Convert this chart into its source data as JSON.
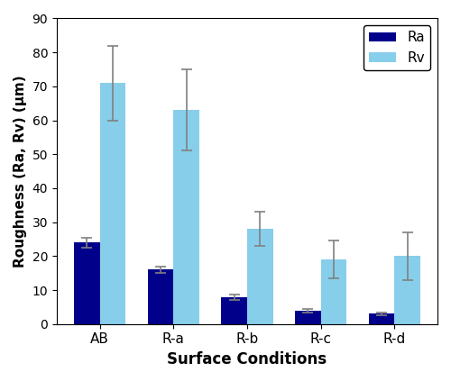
{
  "categories": [
    "AB",
    "R-a",
    "R-b",
    "R-c",
    "R-d"
  ],
  "Ra_values": [
    24.0,
    16.0,
    8.0,
    4.0,
    3.0
  ],
  "Ra_errors": [
    1.5,
    1.0,
    0.8,
    0.5,
    0.5
  ],
  "Rv_values": [
    71.0,
    63.0,
    28.0,
    19.0,
    20.0
  ],
  "Rv_errors": [
    11.0,
    12.0,
    5.0,
    5.5,
    7.0
  ],
  "Ra_color": "#00008B",
  "Rv_color": "#87CEEB",
  "title": "",
  "xlabel": "Surface Conditions",
  "ylabel": "Roughness (Ra, Rv) (μm)",
  "ylim": [
    0,
    90
  ],
  "yticks": [
    0,
    10,
    20,
    30,
    40,
    50,
    60,
    70,
    80,
    90
  ],
  "legend_labels": [
    "Ra",
    "Rv"
  ],
  "bar_width": 0.35,
  "error_color": "gray",
  "error_capsize": 4
}
